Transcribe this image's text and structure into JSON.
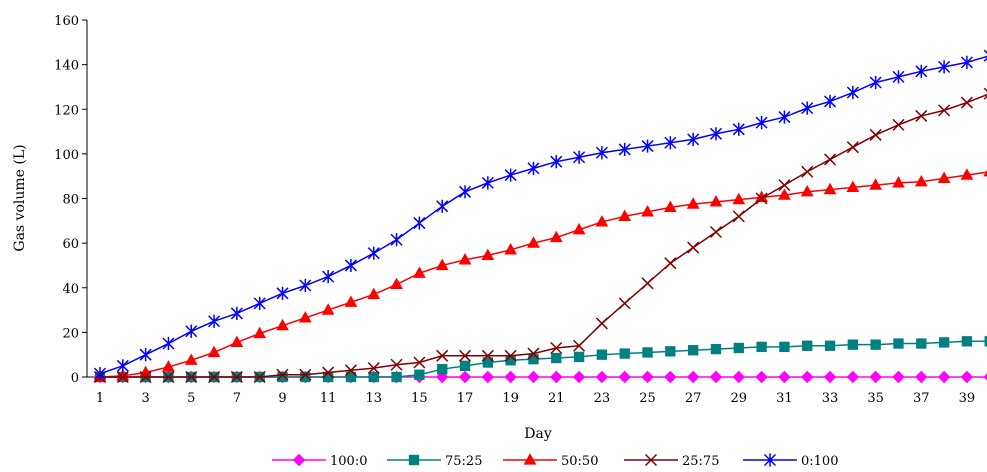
{
  "chart_data": {
    "type": "line",
    "xlabel": "Day",
    "ylabel": "Gas volume (L)",
    "xlim": [
      1,
      40
    ],
    "ylim": [
      0,
      160
    ],
    "y_ticks": [
      "0",
      "20",
      "40",
      "60",
      "80",
      "100",
      "120",
      "140",
      "160"
    ],
    "x_ticks": [
      "1",
      "3",
      "5",
      "7",
      "9",
      "11",
      "13",
      "15",
      "17",
      "19",
      "21",
      "23",
      "25",
      "27",
      "29",
      "31",
      "33",
      "35",
      "37",
      "39"
    ],
    "grid": false,
    "legend_position": "bottom",
    "x": [
      1,
      2,
      3,
      4,
      5,
      6,
      7,
      8,
      9,
      10,
      11,
      12,
      13,
      14,
      15,
      16,
      17,
      18,
      19,
      20,
      21,
      22,
      23,
      24,
      25,
      26,
      27,
      28,
      29,
      30,
      31,
      32,
      33,
      34,
      35,
      36,
      37,
      38,
      39,
      40
    ],
    "series": [
      {
        "name": "100:0",
        "color": "#ff00ff",
        "marker": "diamond",
        "values": [
          0,
          0,
          0,
          0,
          0,
          0,
          0,
          0,
          0,
          0,
          0,
          0,
          0,
          0,
          0,
          0,
          0,
          0,
          0,
          0,
          0,
          0,
          0,
          0,
          0,
          0,
          0,
          0,
          0,
          0,
          0,
          0,
          0,
          0,
          0,
          0,
          0,
          0,
          0,
          0
        ]
      },
      {
        "name": "75:25",
        "color": "#008080",
        "marker": "square",
        "values": [
          0,
          0,
          0,
          0,
          0,
          0,
          0,
          0,
          0,
          0,
          0,
          0,
          0,
          0,
          1,
          3.5,
          5,
          6.5,
          7.5,
          8,
          8.5,
          9,
          10,
          10.5,
          11,
          11.5,
          12,
          12.5,
          13,
          13.5,
          13.5,
          14,
          14,
          14.5,
          14.5,
          15,
          15,
          15.5,
          16,
          16
        ]
      },
      {
        "name": "50:50",
        "color": "#ff0000",
        "marker": "triangle",
        "values": [
          0,
          0.5,
          2,
          4.5,
          7.5,
          11,
          15.5,
          19.5,
          23,
          26.5,
          30,
          33.5,
          37,
          41.5,
          46.5,
          50,
          52.5,
          54.5,
          57,
          60,
          62.5,
          66,
          69.5,
          72,
          74,
          76,
          77.5,
          78.5,
          79.5,
          80.5,
          81.5,
          83,
          84,
          85,
          86,
          87,
          87.5,
          89,
          90.5,
          92
        ]
      },
      {
        "name": "25:75",
        "color": "#800000",
        "marker": "x",
        "values": [
          0,
          0,
          0,
          0,
          0,
          0,
          0,
          0,
          1,
          1,
          2,
          3,
          4,
          5.5,
          6.5,
          9.5,
          9.5,
          9.5,
          9.5,
          10.5,
          13,
          14,
          24,
          33,
          42,
          51,
          58,
          65,
          72,
          80,
          86,
          92,
          97.5,
          103,
          108.5,
          113,
          117,
          119.5,
          123,
          127
        ]
      },
      {
        "name": "0:100",
        "color": "#0000ff",
        "marker": "asterisk",
        "values": [
          1.5,
          5,
          10,
          15,
          20.5,
          25,
          28.5,
          33,
          37.5,
          41,
          45,
          50,
          55.5,
          61.5,
          69,
          76.5,
          83,
          87,
          90.5,
          93.5,
          96.5,
          98.5,
          100.5,
          102,
          103.5,
          105,
          106.5,
          109,
          111,
          114,
          116.5,
          120.5,
          123.5,
          127.5,
          132,
          134.5,
          137,
          139,
          141,
          144
        ]
      }
    ]
  }
}
